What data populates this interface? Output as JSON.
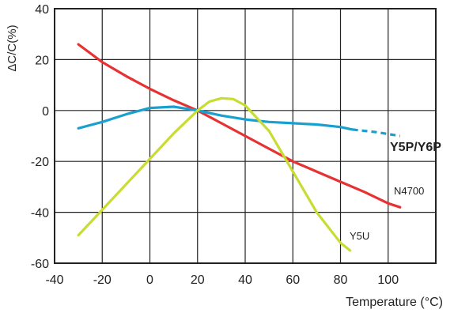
{
  "chart_data": {
    "type": "line",
    "ylabel": "ΔC/C(%)",
    "xlabel": "Temperature (°C)",
    "xlim": [
      -40,
      120
    ],
    "ylim": [
      -60,
      40
    ],
    "x_ticks": [
      "-40",
      "-20",
      "0",
      "20",
      "40",
      "60",
      "80",
      "100"
    ],
    "y_ticks": [
      "40",
      "20",
      "0",
      "-20",
      "-40",
      "-60"
    ],
    "grid": true,
    "series": [
      {
        "name": "N4700",
        "color": "#e63232",
        "x": [
          -30,
          -20,
          -10,
          0,
          10,
          20,
          30,
          40,
          50,
          60,
          70,
          80,
          90,
          100,
          105
        ],
        "y": [
          26,
          19,
          13.5,
          8.5,
          4,
          0,
          -5,
          -10,
          -15,
          -20,
          -24,
          -28,
          -32,
          -36.5,
          -38
        ]
      },
      {
        "name": "Y5P/Y6P",
        "color": "#1aa0d0",
        "x": [
          -30,
          -20,
          -10,
          0,
          10,
          20,
          30,
          40,
          50,
          60,
          70,
          80,
          85
        ],
        "y": [
          -7,
          -4.5,
          -1.5,
          1,
          1.5,
          0,
          -2,
          -3.5,
          -4.5,
          -5,
          -5.5,
          -6.5,
          -7.5
        ],
        "dashed_x": [
          85,
          95,
          105
        ],
        "dashed_y": [
          -7.5,
          -8.5,
          -10
        ]
      },
      {
        "name": "Y5U",
        "color": "#c8dc32",
        "x": [
          -30,
          -20,
          -10,
          0,
          10,
          20,
          25,
          30,
          35,
          40,
          50,
          60,
          70,
          80,
          84
        ],
        "y": [
          -49,
          -39,
          -29,
          -19,
          -9,
          0,
          3.5,
          4.8,
          4.5,
          2,
          -8,
          -24,
          -40,
          -52,
          -55
        ]
      }
    ],
    "labels": [
      {
        "text": "Y5P/Y6P",
        "series": 1,
        "style": "bold"
      },
      {
        "text": "N4700",
        "series": 0,
        "style": "normal"
      },
      {
        "text": "Y5U",
        "series": 2,
        "style": "normal"
      }
    ]
  }
}
